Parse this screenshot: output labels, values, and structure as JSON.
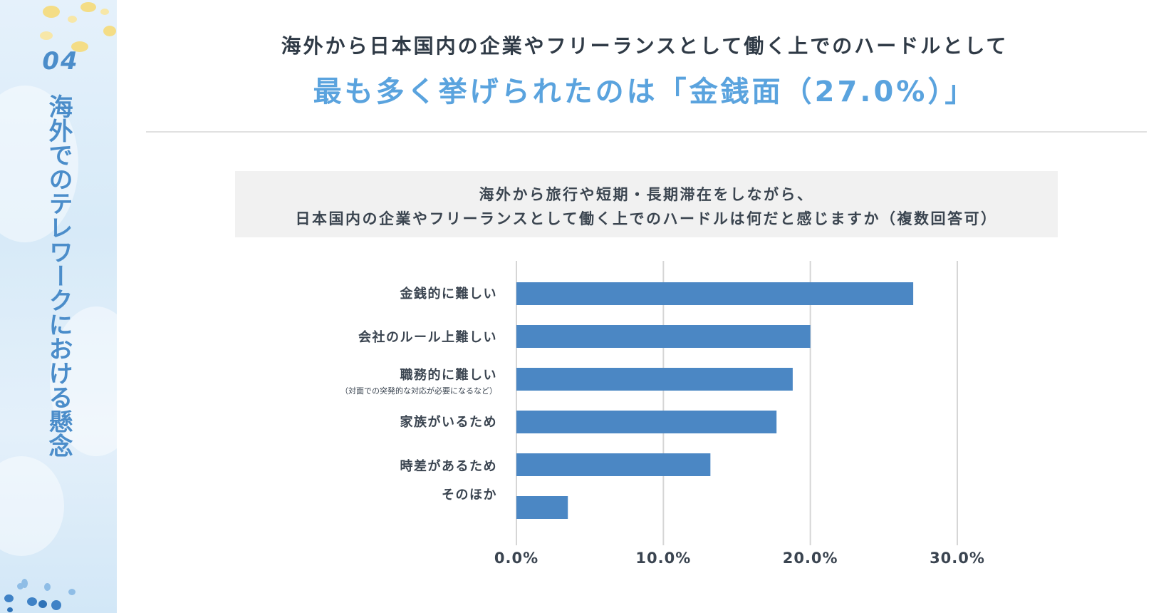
{
  "sidebar": {
    "number": "04",
    "title": "海外でのテレワークにおける懸念"
  },
  "headline": {
    "line1": "海外から日本国内の企業やフリーランスとして働く上でのハードルとして",
    "line2": "最も多く挙げられたのは「金銭面（27.0%）」"
  },
  "question": {
    "line1": "海外から旅行や短期・長期滞在をしながら、",
    "line2": "日本国内の企業やフリーランスとして働く上でのハードルは何だと感じますか（複数回答可）"
  },
  "colors": {
    "accent": "#5aa3de",
    "bar": "#4b87c4",
    "sidebar_text": "#4b8dca",
    "grid": "#d6d6d6"
  },
  "chart_data": {
    "type": "bar",
    "orientation": "horizontal",
    "categories": [
      "金銭的に難しい",
      "会社のルール上難しい",
      "職務的に難しい",
      "家族がいるため",
      "時差があるため",
      "そのほか"
    ],
    "category_notes": [
      "",
      "",
      "（対面での突発的な対応が必要になるなど）",
      "",
      "",
      ""
    ],
    "values": [
      27.0,
      20.0,
      18.8,
      17.7,
      13.2,
      3.5
    ],
    "xlim": [
      0,
      30
    ],
    "ticks": [
      0,
      10,
      20,
      30
    ],
    "tick_labels": [
      "0.0%",
      "10.0%",
      "20.0%",
      "30.0%"
    ],
    "grid": true
  }
}
